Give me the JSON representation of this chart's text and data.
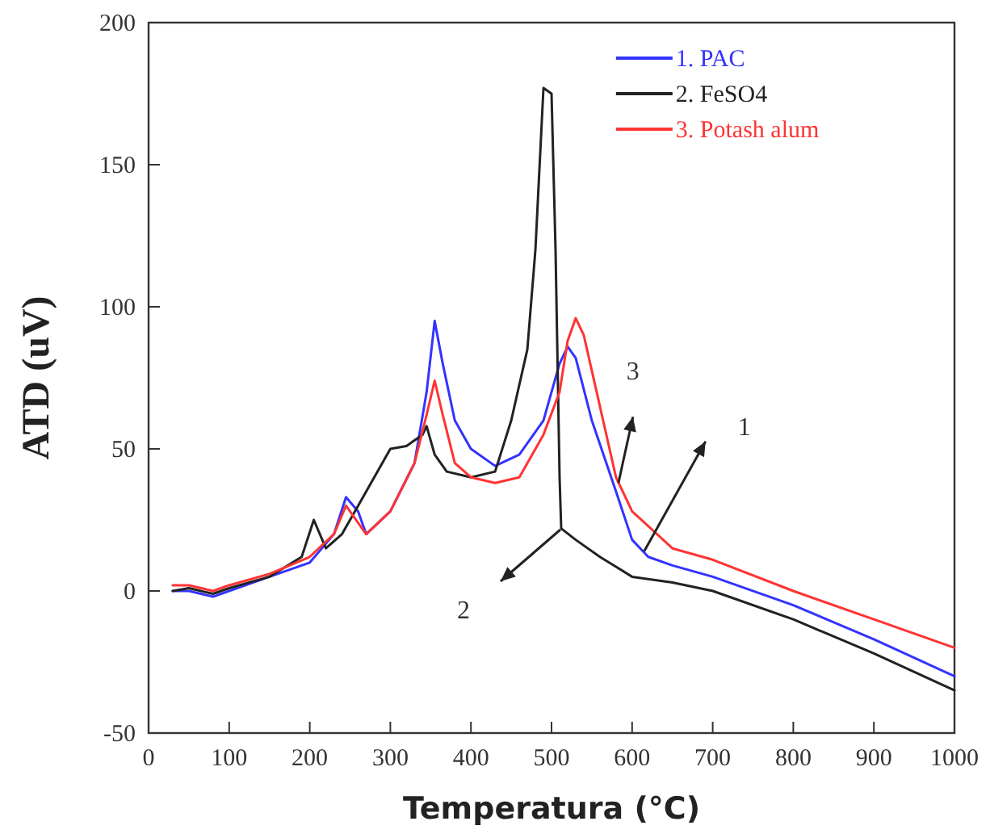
{
  "chart_data": {
    "type": "line",
    "xlabel": "Temperatura (°C)",
    "ylabel": "ATD (uV)",
    "xlim": [
      0,
      1000
    ],
    "ylim": [
      -50,
      200
    ],
    "xticks": [
      0,
      100,
      200,
      300,
      400,
      500,
      600,
      700,
      800,
      900,
      1000
    ],
    "yticks": [
      -50,
      0,
      50,
      100,
      150,
      200
    ],
    "grid": false,
    "legend": "top right",
    "marker": "none",
    "line_style": "solid",
    "series": [
      {
        "name": "1. PAC",
        "color": "#3333ff",
        "x": [
          30,
          50,
          80,
          100,
          150,
          200,
          230,
          245,
          260,
          270,
          300,
          330,
          345,
          355,
          365,
          380,
          400,
          430,
          460,
          490,
          510,
          520,
          530,
          550,
          580,
          600,
          620,
          650,
          700,
          800,
          900,
          1000
        ],
        "values": [
          0,
          0,
          -2,
          0,
          5,
          10,
          20,
          33,
          28,
          20,
          28,
          45,
          70,
          95,
          80,
          60,
          50,
          44,
          48,
          60,
          80,
          86,
          82,
          60,
          35,
          18,
          12,
          9,
          5,
          -5,
          -17,
          -30
        ]
      },
      {
        "name": "2. FeSO4",
        "color": "#222222",
        "x": [
          30,
          50,
          80,
          100,
          150,
          190,
          205,
          220,
          240,
          260,
          280,
          300,
          320,
          340,
          345,
          355,
          370,
          400,
          430,
          450,
          470,
          480,
          490,
          500,
          505,
          510,
          512,
          530,
          560,
          600,
          650,
          700,
          800,
          900,
          1000
        ],
        "values": [
          0,
          1,
          -1,
          1,
          5,
          12,
          25,
          15,
          20,
          30,
          40,
          50,
          51,
          55,
          58,
          48,
          42,
          40,
          42,
          60,
          85,
          120,
          177,
          175,
          120,
          40,
          22,
          18,
          12,
          5,
          3,
          0,
          -10,
          -22,
          -35
        ]
      },
      {
        "name": "3. Potash alum",
        "color": "#ff3333",
        "x": [
          30,
          50,
          80,
          100,
          150,
          200,
          230,
          245,
          260,
          270,
          300,
          330,
          345,
          355,
          365,
          380,
          400,
          430,
          460,
          490,
          510,
          520,
          530,
          540,
          560,
          580,
          600,
          650,
          700,
          800,
          900,
          1000
        ],
        "values": [
          2,
          2,
          0,
          2,
          6,
          12,
          20,
          30,
          24,
          20,
          28,
          45,
          62,
          74,
          62,
          45,
          40,
          38,
          40,
          55,
          70,
          88,
          96,
          90,
          65,
          40,
          28,
          15,
          11,
          0,
          -10,
          -20
        ]
      }
    ],
    "annotations": [
      {
        "text": "1",
        "x": 615,
        "y": 14
      },
      "2",
      {
        "text": "3",
        "x": 583,
        "y": 38
      }
    ]
  }
}
